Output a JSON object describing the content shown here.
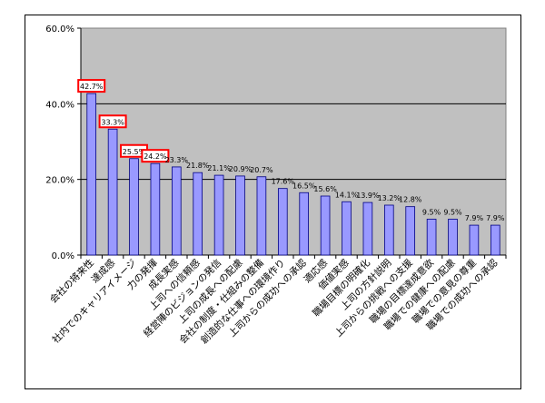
{
  "chart_data": {
    "type": "bar",
    "categories": [
      "会社の将来性",
      "達成感",
      "社内でのキャリアイメージ",
      "力の発揮",
      "成長実感",
      "上司への信頼感",
      "経営陣のビジョンの発信",
      "上司の成長への配慮",
      "会社の制度・仕組みの整備",
      "創造的な仕事への環境作り",
      "上司からの成功への承認",
      "適応感",
      "価値実感",
      "職場目標の明確化",
      "上司の方針説明",
      "上司からの挑戦への支援",
      "職場の目標達成意欲",
      "職場での健康への配慮",
      "職場での意見の尊重",
      "職場での成功への承認"
    ],
    "values": [
      42.7,
      33.3,
      25.5,
      24.2,
      23.3,
      21.8,
      21.1,
      20.9,
      20.7,
      17.6,
      16.5,
      15.6,
      14.1,
      13.9,
      13.2,
      12.8,
      9.5,
      9.5,
      7.9,
      7.9
    ],
    "data_labels": [
      "42.7%",
      "33.3%",
      "25.5%",
      "24.2%",
      "23.3%",
      "21.8%",
      "21.1%",
      "20.9%",
      "20.7%",
      "17.6%",
      "16.5%",
      "15.6%",
      "14.1%",
      "13.9%",
      "13.2%",
      "12.8%",
      "9.5%",
      "9.5%",
      "7.9%",
      "7.9%"
    ],
    "highlighted": [
      0,
      1,
      2,
      3
    ],
    "yticks": [
      "0.0%",
      "20.0%",
      "40.0%",
      "60.0%"
    ],
    "ylim": [
      0,
      60
    ],
    "title": "",
    "xlabel": "",
    "ylabel": "",
    "grid": true,
    "legend": "none",
    "colors": {
      "bar_fill": "#9999FF",
      "bar_stroke": "#000080",
      "plot_bg": "#C0C0C0",
      "highlight": "#FF0000"
    }
  }
}
